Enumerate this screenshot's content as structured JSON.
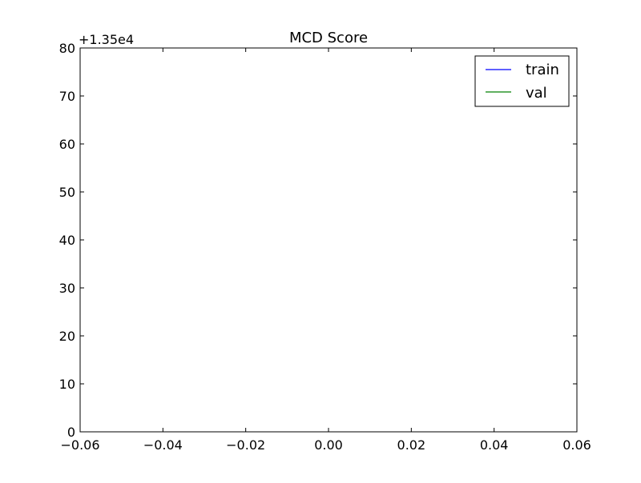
{
  "chart_data": {
    "type": "line",
    "title": "MCD Score",
    "xlabel": "",
    "ylabel": "",
    "xlim": [
      -0.06,
      0.06
    ],
    "ylim": [
      0,
      80
    ],
    "x_ticks": [
      -0.06,
      -0.04,
      -0.02,
      0.0,
      0.02,
      0.04,
      0.06
    ],
    "x_tick_labels": [
      "−0.06",
      "−0.04",
      "−0.02",
      "0.00",
      "0.02",
      "0.04",
      "0.06"
    ],
    "y_ticks": [
      0,
      10,
      20,
      30,
      40,
      50,
      60,
      70,
      80
    ],
    "y_tick_labels": [
      "0",
      "10",
      "20",
      "30",
      "40",
      "50",
      "60",
      "70",
      "80"
    ],
    "y_offset_label": "+1.35e4",
    "grid": false,
    "legend_position": "top-right",
    "series": [
      {
        "name": "train",
        "color": "#0000ff",
        "x": [],
        "y": []
      },
      {
        "name": "val",
        "color": "#008000",
        "x": [],
        "y": []
      }
    ]
  }
}
